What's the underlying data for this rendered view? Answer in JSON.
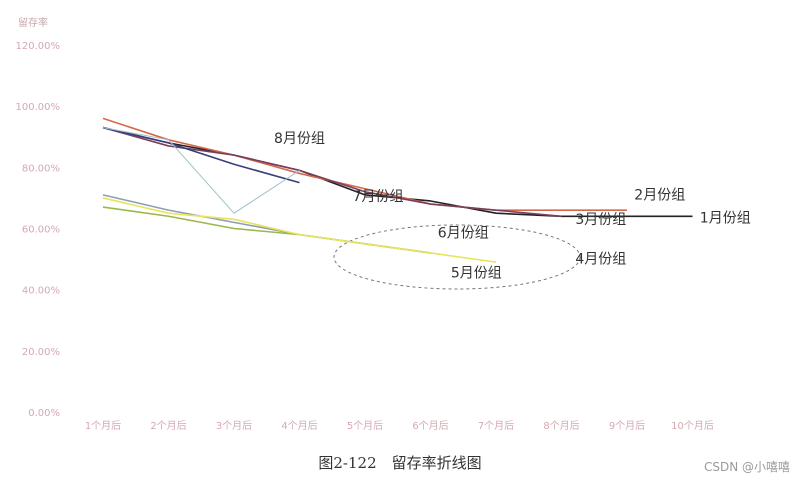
{
  "chart_data": {
    "type": "line",
    "ylabel": "留存率",
    "ylim": [
      0,
      120
    ],
    "y_ticks": [
      "0.00%",
      "20.00%",
      "40.00%",
      "60.00%",
      "80.00%",
      "100.00%",
      "120.00%"
    ],
    "categories": [
      "1个月后",
      "2个月后",
      "3个月后",
      "4个月后",
      "5个月后",
      "6个月后",
      "7个月后",
      "8个月后",
      "9个月后",
      "10个月后"
    ],
    "series": [
      {
        "name": "1月份组",
        "color": "#222222",
        "values": [
          93,
          88,
          84,
          79,
          71,
          69,
          65,
          64,
          64,
          64
        ]
      },
      {
        "name": "2月份组",
        "color": "#d6684a",
        "values": [
          96,
          89,
          84,
          78,
          73,
          68,
          66,
          66,
          66,
          null
        ]
      },
      {
        "name": "3月份组",
        "color": "#7a3f5e",
        "values": [
          93,
          87,
          84,
          79,
          72,
          68,
          66,
          64,
          null,
          null
        ]
      },
      {
        "name": "7月份组",
        "color": "#3a3d7a",
        "values": [
          93,
          88,
          81,
          75,
          null,
          null,
          null,
          null,
          null,
          null
        ]
      },
      {
        "name": "8月份组",
        "color": "#9fc0c9",
        "values": [
          93,
          89,
          65,
          79,
          null,
          null,
          null,
          null,
          null,
          null
        ]
      },
      {
        "name": "6月份组",
        "color": "#8f9fb4",
        "values": [
          71,
          66,
          62,
          58,
          55,
          52,
          null,
          null,
          null,
          null
        ]
      },
      {
        "name": "5月份组",
        "color": "#9ab84a",
        "values": [
          67,
          64,
          60,
          58,
          55,
          52,
          null,
          null,
          null,
          null
        ]
      },
      {
        "name": "4月份组",
        "color": "#e8e45a",
        "values": [
          70,
          65,
          63,
          58,
          55,
          52,
          49,
          null,
          null,
          null
        ]
      }
    ],
    "labels": [
      {
        "text": "8月份组",
        "x": 4,
        "y": 88
      },
      {
        "text": "7月份组",
        "x": 5.2,
        "y": 69
      },
      {
        "text": "6月份组",
        "x": 6.5,
        "y": 57
      },
      {
        "text": "5月份组",
        "x": 6.7,
        "y": 44
      },
      {
        "text": "4月份组",
        "x": 8.6,
        "y": 48.5
      },
      {
        "text": "2月份组",
        "x": 9.5,
        "y": 69.5
      },
      {
        "text": "3月份组",
        "x": 8.6,
        "y": 61.5
      },
      {
        "text": "1月份组",
        "x": 10.5,
        "y": 62
      }
    ],
    "grid": false,
    "legend": "none"
  },
  "caption": "图2-122　留存率折线图",
  "watermark": "CSDN @小嘻嘻"
}
